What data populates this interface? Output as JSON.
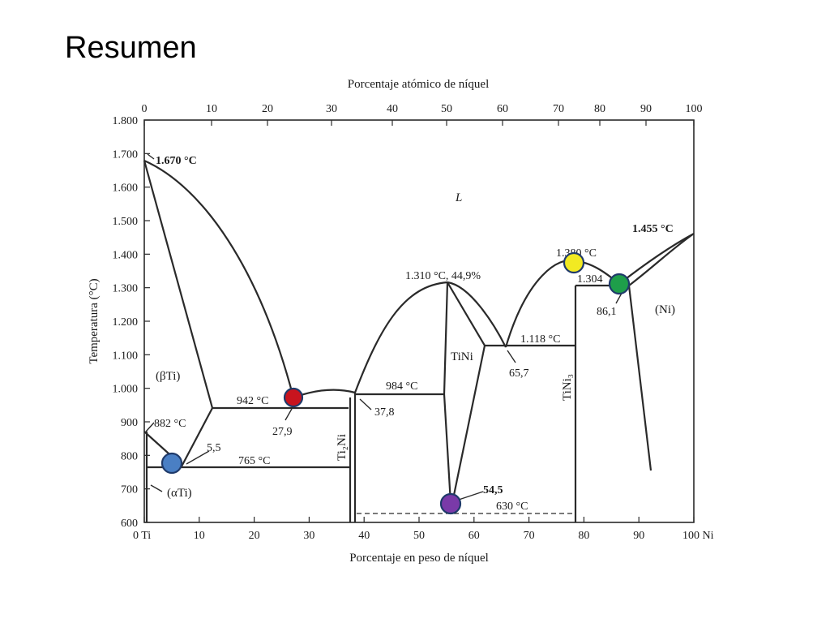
{
  "slide": {
    "title": "Resumen"
  },
  "diagram": {
    "top_axis_title": "Porcentaje atómico de níquel",
    "bottom_axis_title": "Porcentaje en peso de níquel",
    "left_axis_title": "Temperatura (°C)",
    "top_ticks": [
      "0",
      "10",
      "20",
      "30",
      "40",
      "50",
      "60",
      "70",
      "80",
      "90",
      "100"
    ],
    "bottom_ticks": [
      "0 Ti",
      "10",
      "20",
      "30",
      "40",
      "50",
      "60",
      "70",
      "80",
      "90",
      "100 Ni"
    ],
    "y_ticks": [
      "1.800",
      "1.700",
      "1.600",
      "1.500",
      "1.400",
      "1.300",
      "1.200",
      "1.100",
      "1.000",
      "900",
      "800",
      "700",
      "600"
    ],
    "phases": {
      "liquid": "L",
      "beta_ti": "(βTi)",
      "alpha_ti": "(αTi)",
      "ti2ni": "Ti₂Ni",
      "tini": "TiNi",
      "tini3": "TiNi₃",
      "ni": "(Ni)"
    },
    "annotations": {
      "ti_melting": "1.670 °C",
      "ni_melting": "1.455 °C",
      "tini3_melting": "1.380 °C",
      "tini_melting": "1.310 °C, 44,9%",
      "eutectic_ni_side": "1.304",
      "eutectic_ni_comp": "86,1",
      "eutectic_mid": "1.118 °C",
      "eutectic_mid_comp": "65,7",
      "peritectic_984": "984 °C",
      "comp_37_8": "37,8",
      "eutectic_942": "942 °C",
      "comp_27_9": "27,9",
      "allotropic_882": "882 °C",
      "eutectoid_765": "765 °C",
      "comp_5_5": "5,5",
      "comp_54_5": "54,5",
      "temp_630": "630 °C"
    },
    "markers": [
      {
        "name": "marker-red",
        "color": "#c8141e"
      },
      {
        "name": "marker-blue",
        "color": "#4a7fc4"
      },
      {
        "name": "marker-purple",
        "color": "#7a3aa8"
      },
      {
        "name": "marker-yellow",
        "color": "#f2ea22"
      },
      {
        "name": "marker-green",
        "color": "#1e9e4a"
      }
    ]
  }
}
